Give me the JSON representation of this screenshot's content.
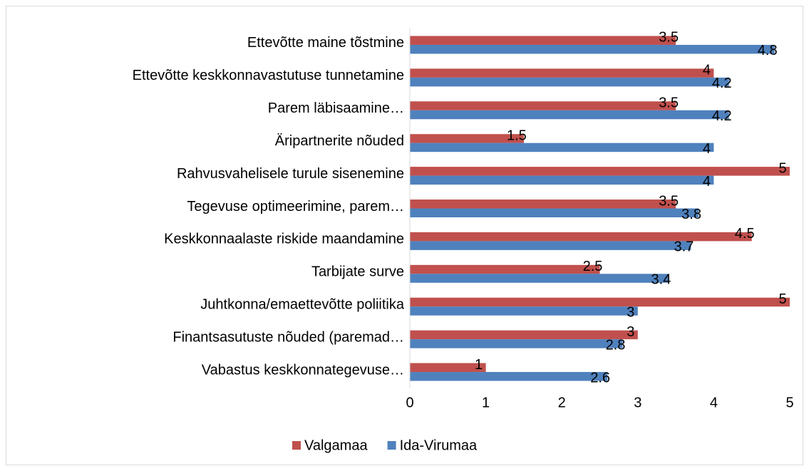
{
  "chart_data": {
    "type": "bar",
    "orientation": "horizontal",
    "categories": [
      "Ettevõtte maine tõstmine",
      "Ettevõtte keskkonnavastutuse tunnetamine",
      "Parem läbisaamine…",
      "Äripartnerite nõuded",
      "Rahvusvahelisele turule sisenemine",
      "Tegevuse optimeerimine, parem…",
      "Keskkonnaalaste riskide maandamine",
      "Tarbijate surve",
      "Juhtkonna/emaettevõtte poliitika",
      "Finantsasutuste nõuded (paremad…",
      "Vabastus keskkonnategevuse…"
    ],
    "series": [
      {
        "name": "Valgamaa",
        "color": "#c0504d",
        "values": [
          3.5,
          4,
          3.5,
          1.5,
          5,
          3.5,
          4.5,
          2.5,
          5,
          3,
          1
        ]
      },
      {
        "name": "Ida-Virumaa",
        "color": "#4f81bd",
        "values": [
          4.8,
          4.2,
          4.2,
          4,
          4,
          3.8,
          3.7,
          3.4,
          3,
          2.8,
          2.6
        ]
      }
    ],
    "xlim": [
      0,
      5
    ],
    "xticks": [
      0,
      1,
      2,
      3,
      4,
      5
    ],
    "legend": "bottom"
  }
}
